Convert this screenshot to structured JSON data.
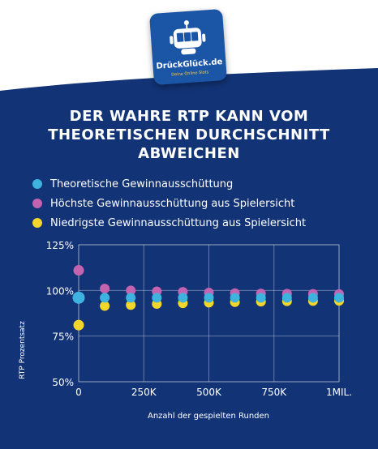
{
  "brand": {
    "name": "DrückGlück.de",
    "tagline": "Deine Online Slots"
  },
  "colors": {
    "background": "#123375",
    "theoretical": "#3fb3e0",
    "highest": "#c464b0",
    "lowest": "#f2d62b"
  },
  "title_lines": [
    "DER WAHRE RTP KANN VOM",
    "THEORETISCHEN DURCHSCHNITT",
    "ABWEICHEN"
  ],
  "legend": [
    {
      "label": "Theoretische Gewinnausschüttung",
      "color": "#3fb3e0"
    },
    {
      "label": "Höchste Gewinnausschüttung aus Spielersicht",
      "color": "#c464b0"
    },
    {
      "label": "Niedrigste Gewinnausschüttung aus Spielersicht",
      "color": "#f2d62b"
    }
  ],
  "chart_data": {
    "type": "scatter",
    "xlabel": "Anzahl der gespielten Runden",
    "ylabel": "RTP Prozentsatz",
    "xlim": [
      0,
      1000000
    ],
    "ylim": [
      50,
      125
    ],
    "grid": true,
    "legend_position": "top-left",
    "x_ticks": [
      {
        "value": 0,
        "label": "0"
      },
      {
        "value": 250000,
        "label": "250K"
      },
      {
        "value": 500000,
        "label": "500K"
      },
      {
        "value": 750000,
        "label": "750K"
      },
      {
        "value": 1000000,
        "label": "1MIL."
      }
    ],
    "y_ticks": [
      {
        "value": 125,
        "label": "125%"
      },
      {
        "value": 100,
        "label": "100%"
      },
      {
        "value": 75,
        "label": "75%"
      },
      {
        "value": 50,
        "label": "50%"
      }
    ],
    "series": [
      {
        "name": "Höchste Gewinnausschüttung aus Spielersicht",
        "color": "#c464b0",
        "x": [
          0,
          100000,
          200000,
          300000,
          400000,
          500000,
          600000,
          700000,
          800000,
          900000,
          1000000
        ],
        "y": [
          111,
          101,
          100,
          99.5,
          99.2,
          98.8,
          98.5,
          98.3,
          98.2,
          98.1,
          98
        ]
      },
      {
        "name": "Niedrigste Gewinnausschüttung aus Spielersicht",
        "color": "#f2d62b",
        "x": [
          0,
          100000,
          200000,
          300000,
          400000,
          500000,
          600000,
          700000,
          800000,
          900000,
          1000000
        ],
        "y": [
          81,
          91.5,
          92,
          92.6,
          93,
          93.3,
          93.6,
          93.9,
          94.1,
          94.2,
          94.3
        ]
      },
      {
        "name": "Theoretische Gewinnausschüttung",
        "color": "#3fb3e0",
        "x": [
          0,
          100000,
          200000,
          300000,
          400000,
          500000,
          600000,
          700000,
          800000,
          900000,
          1000000
        ],
        "y": [
          96,
          96,
          96,
          96,
          96,
          96,
          96,
          96,
          96,
          96,
          96
        ]
      }
    ]
  }
}
